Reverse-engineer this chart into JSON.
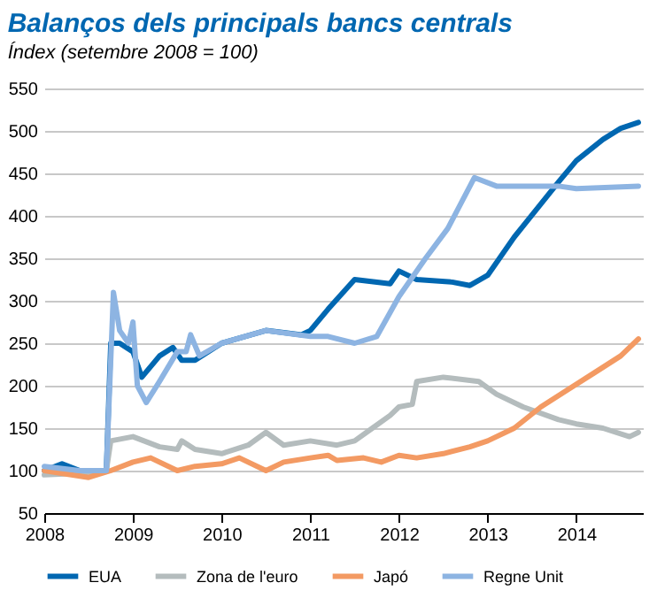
{
  "chart_data": {
    "type": "line",
    "title": "Balanços dels principals bancs centrals",
    "subtitle": "Índex (setembre 2008 = 100)",
    "xlim": [
      2008,
      2014.75
    ],
    "xticks": [
      2008,
      2009,
      2010,
      2011,
      2012,
      2013,
      2014
    ],
    "ylim": [
      50,
      550
    ],
    "yticks": [
      50,
      100,
      150,
      200,
      250,
      300,
      350,
      400,
      450,
      500,
      550
    ],
    "grid": "y",
    "legend": "bottom",
    "line_style": "solid",
    "marker": "none",
    "series": [
      {
        "name": "EUA",
        "color": "#0067b1",
        "x": [
          2008,
          2008.2,
          2008.4,
          2008.7,
          2008.75,
          2008.85,
          2009.0,
          2009.1,
          2009.3,
          2009.45,
          2009.55,
          2009.7,
          2010.0,
          2010.5,
          2010.9,
          2011.0,
          2011.2,
          2011.5,
          2011.9,
          2012.0,
          2012.2,
          2012.6,
          2012.8,
          2013.0,
          2013.3,
          2013.8,
          2014.0,
          2014.3,
          2014.5,
          2014.7
        ],
        "values": [
          100,
          108,
          100,
          100,
          250,
          250,
          240,
          210,
          235,
          245,
          230,
          230,
          250,
          265,
          260,
          265,
          290,
          325,
          320,
          335,
          325,
          322,
          318,
          330,
          375,
          440,
          465,
          490,
          503,
          510
        ]
      },
      {
        "name": "Zona de l'euro",
        "color": "#b4bcbd",
        "x": [
          2008,
          2008.4,
          2008.7,
          2008.75,
          2009.0,
          2009.3,
          2009.5,
          2009.55,
          2009.7,
          2010.0,
          2010.3,
          2010.5,
          2010.7,
          2011.0,
          2011.3,
          2011.5,
          2011.7,
          2011.9,
          2012.0,
          2012.15,
          2012.2,
          2012.5,
          2012.9,
          2013.1,
          2013.4,
          2013.8,
          2014.0,
          2014.3,
          2014.6,
          2014.7
        ],
        "values": [
          95,
          97,
          100,
          135,
          140,
          128,
          125,
          135,
          125,
          120,
          130,
          145,
          130,
          135,
          130,
          135,
          150,
          165,
          175,
          178,
          205,
          210,
          205,
          190,
          175,
          160,
          155,
          150,
          140,
          145
        ]
      },
      {
        "name": "Japó",
        "color": "#f39a63",
        "x": [
          2008,
          2008.5,
          2008.75,
          2009.0,
          2009.2,
          2009.5,
          2009.7,
          2010.0,
          2010.2,
          2010.5,
          2010.7,
          2011.0,
          2011.2,
          2011.3,
          2011.6,
          2011.8,
          2012.0,
          2012.2,
          2012.5,
          2012.8,
          2013.0,
          2013.3,
          2013.6,
          2013.9,
          2014.2,
          2014.5,
          2014.7
        ],
        "values": [
          100,
          92,
          100,
          110,
          115,
          100,
          105,
          108,
          115,
          100,
          110,
          115,
          118,
          112,
          115,
          110,
          118,
          115,
          120,
          128,
          135,
          150,
          175,
          195,
          215,
          235,
          255
        ]
      },
      {
        "name": "Regne Unit",
        "color": "#8db4e2",
        "x": [
          2008,
          2008.4,
          2008.7,
          2008.78,
          2008.85,
          2008.95,
          2009.0,
          2009.05,
          2009.15,
          2009.3,
          2009.5,
          2009.6,
          2009.65,
          2009.75,
          2010.0,
          2010.5,
          2011.0,
          2011.2,
          2011.5,
          2011.75,
          2012.0,
          2012.3,
          2012.55,
          2012.85,
          2013.1,
          2013.8,
          2014.0,
          2014.7
        ],
        "values": [
          105,
          100,
          100,
          310,
          265,
          250,
          275,
          200,
          180,
          205,
          240,
          240,
          260,
          235,
          250,
          265,
          258,
          258,
          250,
          258,
          305,
          350,
          385,
          445,
          435,
          435,
          432,
          435
        ]
      }
    ]
  }
}
